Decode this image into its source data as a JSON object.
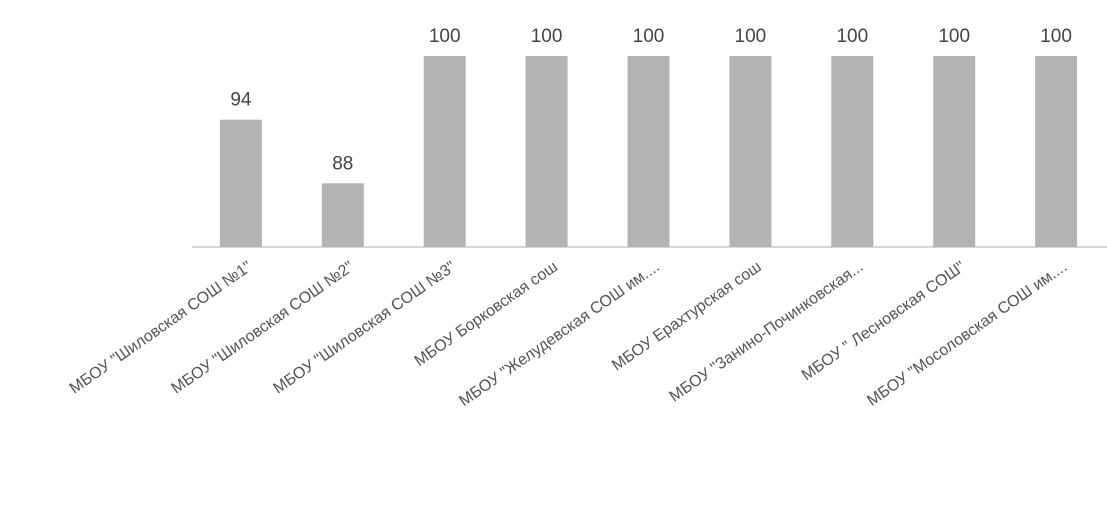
{
  "chart_data": {
    "type": "bar",
    "categories": [
      "МБОУ \"Шиловская СОШ №1\"",
      "МБОУ \"Шиловская СОШ №2\"",
      "МБОУ \"Шиловская СОШ №3\"",
      "МБОУ Борковская сош",
      "МБОУ \"Желудевская СОШ им....",
      "МБОУ Ерахтурская сош",
      "МБОУ \"Занино-Починковская...",
      "МБОУ \" Лесновская СОШ\"",
      "МБОУ \"Мосоловская СОШ им...."
    ],
    "values": [
      94,
      88,
      100,
      100,
      100,
      100,
      100,
      100,
      100
    ],
    "data_labels": [
      "94",
      "88",
      "100",
      "100",
      "100",
      "100",
      "100",
      "100",
      "100"
    ],
    "title": "",
    "xlabel": "",
    "ylabel": "",
    "ylim": [
      82,
      100
    ],
    "grid": false,
    "legend": "none",
    "colors": {
      "bar": "#b3b3b3",
      "axis": "#c8c8c8",
      "data_label": "#444444",
      "category_label": "#555555"
    }
  }
}
